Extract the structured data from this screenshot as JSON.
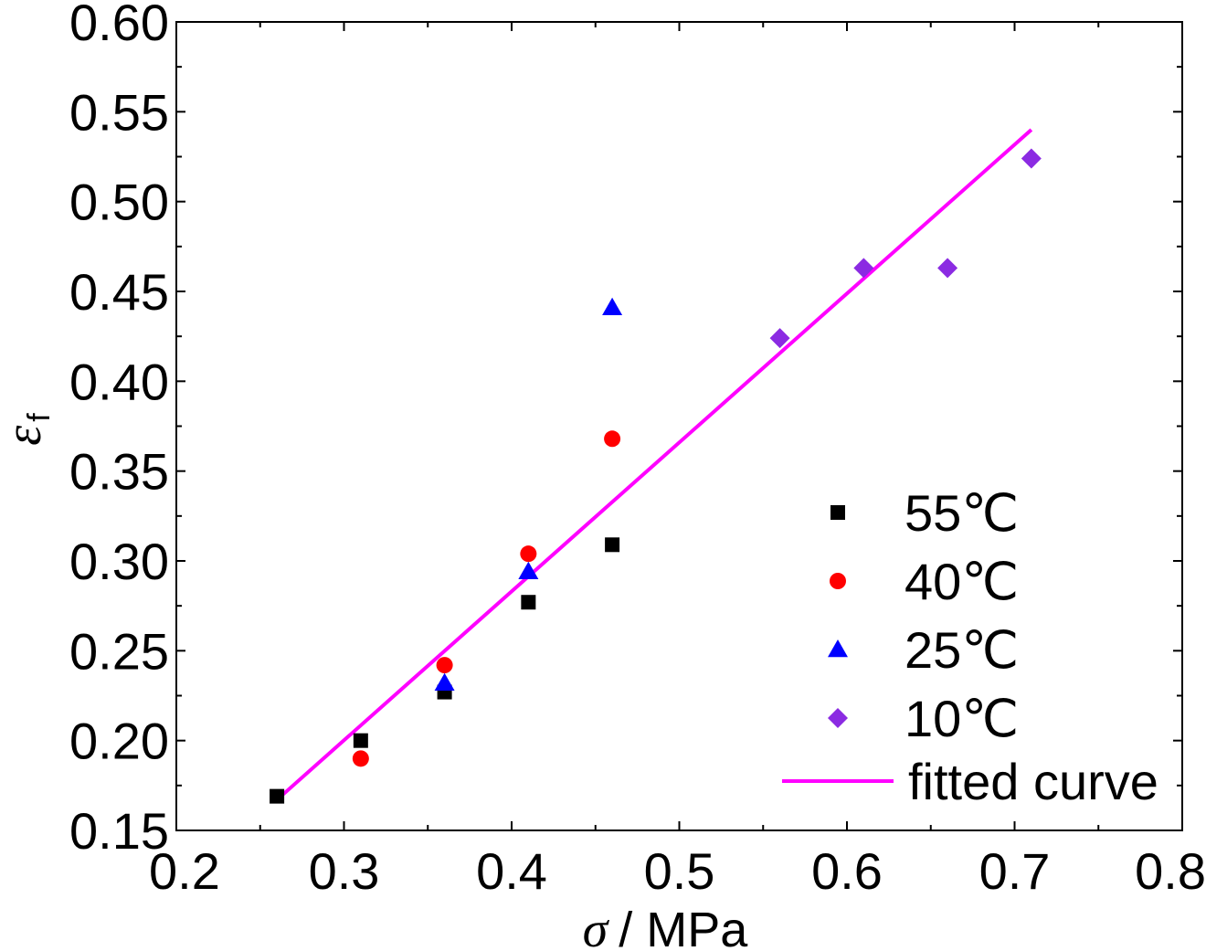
{
  "chart_data": {
    "type": "scatter",
    "xlabel": "/ MPa",
    "xlabel_symbol": "σ",
    "ylabel_symbol": "ε",
    "ylabel_subscript": "f",
    "xlim": [
      0.2,
      0.8
    ],
    "ylim": [
      0.15,
      0.6
    ],
    "xticks": [
      "0.2",
      "0.3",
      "0.4",
      "0.5",
      "0.6",
      "0.7",
      "0.8"
    ],
    "yticks": [
      "0.15",
      "0.20",
      "0.25",
      "0.30",
      "0.35",
      "0.40",
      "0.45",
      "0.50",
      "0.55",
      "0.60"
    ],
    "grid": false,
    "legend_position": "bottom-right",
    "series": [
      {
        "name": "55℃",
        "marker": "square",
        "color": "#000000",
        "points": [
          [
            0.26,
            0.169
          ],
          [
            0.31,
            0.2
          ],
          [
            0.36,
            0.227
          ],
          [
            0.41,
            0.277
          ],
          [
            0.46,
            0.309
          ]
        ]
      },
      {
        "name": "40℃",
        "marker": "circle",
        "color": "#ff0000",
        "points": [
          [
            0.31,
            0.19
          ],
          [
            0.36,
            0.242
          ],
          [
            0.41,
            0.304
          ],
          [
            0.46,
            0.368
          ]
        ]
      },
      {
        "name": "25℃",
        "marker": "triangle",
        "color": "#0000ff",
        "points": [
          [
            0.36,
            0.232
          ],
          [
            0.41,
            0.294
          ],
          [
            0.46,
            0.441
          ]
        ]
      },
      {
        "name": "10℃",
        "marker": "diamond",
        "color": "#8b2be2",
        "points": [
          [
            0.56,
            0.424
          ],
          [
            0.61,
            0.463
          ],
          [
            0.66,
            0.463
          ],
          [
            0.71,
            0.524
          ]
        ]
      }
    ],
    "fit": {
      "name": "fitted curve",
      "color": "#ff00ff",
      "x": [
        0.26,
        0.71
      ],
      "y": [
        0.167,
        0.54
      ]
    }
  }
}
